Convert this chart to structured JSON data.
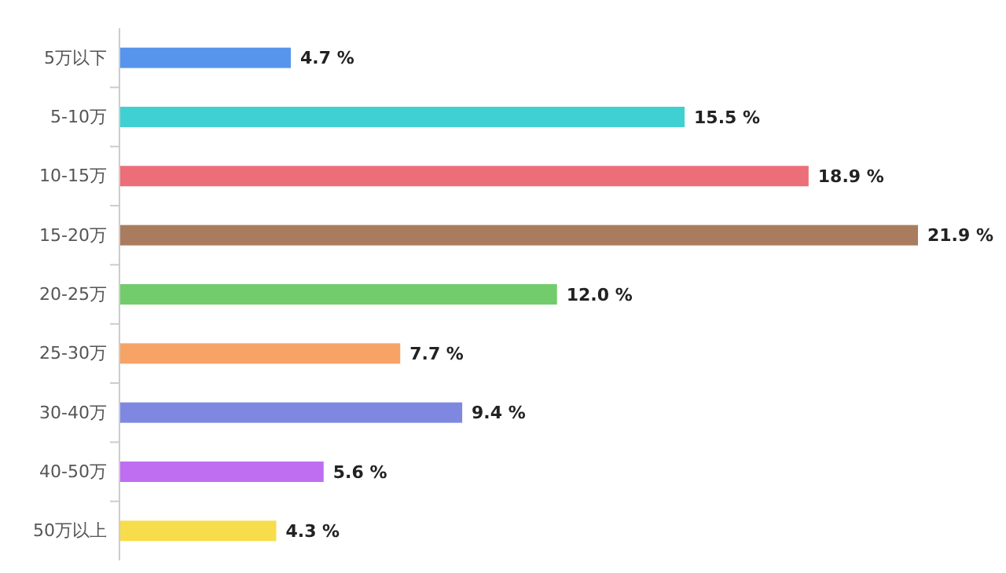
{
  "chart_data": {
    "type": "bar",
    "orientation": "horizontal",
    "categories": [
      "5万以下",
      "5-10万",
      "10-15万",
      "15-20万",
      "20-25万",
      "25-30万",
      "30-40万",
      "40-50万",
      "50万以上"
    ],
    "values": [
      4.7,
      15.5,
      18.9,
      21.9,
      12.0,
      7.7,
      9.4,
      5.6,
      4.3
    ],
    "colors": [
      "#5794ec",
      "#3fd0d2",
      "#ec6e79",
      "#aa7c5f",
      "#72cc6c",
      "#f6a365",
      "#7f88e0",
      "#bf6ef2",
      "#f7dd4c"
    ],
    "value_labels": [
      "4.7 %",
      "15.5 %",
      "18.9 %",
      "21.9 %",
      "12.0 %",
      "7.7 %",
      "9.4 %",
      "5.6 %",
      "4.3 %"
    ],
    "grid": false
  }
}
